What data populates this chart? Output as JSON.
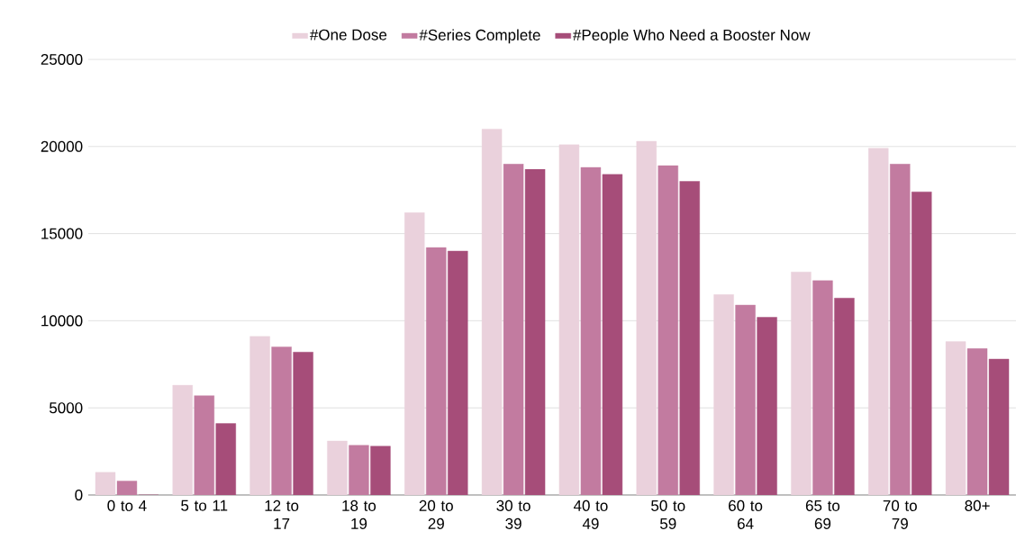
{
  "chart_data": {
    "type": "bar",
    "categories": [
      "0 to 4",
      "5 to 11",
      "12 to 17",
      "18 to 19",
      "20 to 29",
      "30 to 39",
      "40 to 49",
      "50 to 59",
      "60 to 64",
      "65 to 69",
      "70 to 79",
      "80+"
    ],
    "series": [
      {
        "name": "#One Dose",
        "color": "#ead1dc",
        "values": [
          1300,
          6300,
          9100,
          3100,
          16200,
          21000,
          20100,
          20300,
          11500,
          12800,
          19900,
          8800
        ]
      },
      {
        "name": "#Series Complete",
        "color": "#c27ba0",
        "values": [
          800,
          5700,
          8500,
          2850,
          14200,
          19000,
          18800,
          18900,
          10900,
          12300,
          19000,
          8400
        ]
      },
      {
        "name": "#People Who Need a Booster Now",
        "color": "#a64d79",
        "values": [
          0,
          4100,
          8200,
          2800,
          14000,
          18700,
          18400,
          18000,
          10200,
          11300,
          17400,
          7800
        ]
      }
    ],
    "ylim": [
      0,
      25000
    ],
    "yticks": [
      0,
      5000,
      10000,
      15000,
      20000,
      25000
    ],
    "grid": "y",
    "legend": "top"
  }
}
